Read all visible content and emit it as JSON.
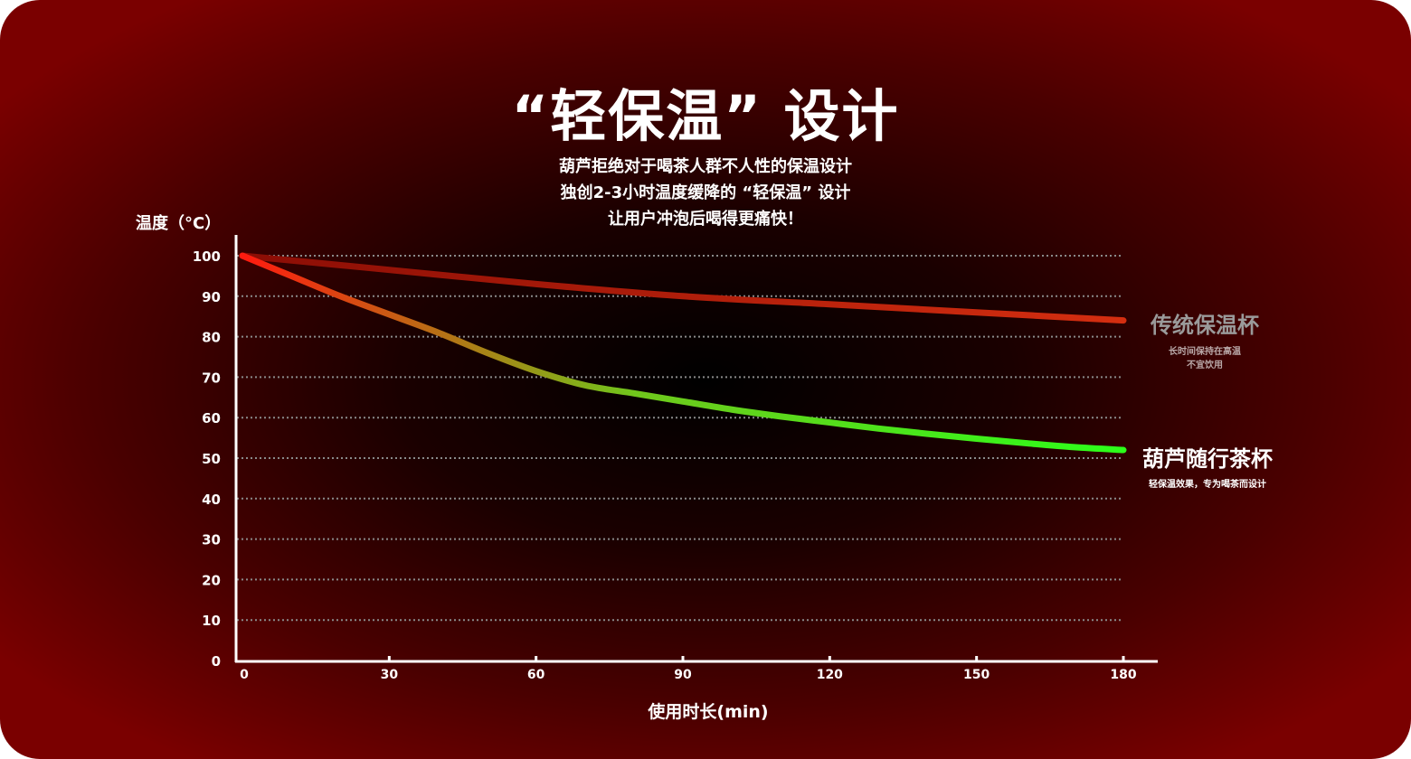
{
  "header": {
    "title": "“轻保温” 设计",
    "subtitle_lines": [
      "葫芦拒绝对于喝茶人群不人性的保温设计",
      "独创2-3小时温度缓降的 “轻保温” 设计",
      "让用户冲泡后喝得更痛快！"
    ]
  },
  "legend": {
    "traditional": {
      "name": "传统保温杯",
      "desc_lines": [
        "长时间保持在高温",
        "不宜饮用"
      ]
    },
    "gourd": {
      "name": "葫芦随行茶杯",
      "desc_lines": [
        "轻保温效果，专为喝茶而设计"
      ]
    }
  },
  "colors": {
    "traditional_start": "#8b0d05",
    "traditional_end": "#d42e10",
    "gourd_start": "#ff1a0f",
    "gourd_mid": "#6fc81c",
    "gourd_end": "#2cff1a",
    "axis": "#ffffff",
    "grid": "#8a8a8a"
  },
  "chart_data": {
    "type": "line",
    "ylabel": "温度（°C）",
    "xlabel": "使用时长(min)",
    "x_ticks": [
      0,
      30,
      60,
      90,
      120,
      150,
      180
    ],
    "y_ticks": [
      0,
      10,
      20,
      30,
      40,
      50,
      60,
      70,
      80,
      90,
      100
    ],
    "xlim": [
      0,
      180
    ],
    "ylim": [
      0,
      100
    ],
    "grid": "horizontal dotted",
    "series": [
      {
        "name": "传统保温杯",
        "x": [
          0,
          30,
          60,
          90,
          120,
          150,
          180
        ],
        "values": [
          100,
          96.5,
          93,
          90,
          88,
          86,
          84
        ]
      },
      {
        "name": "葫芦随行茶杯",
        "x": [
          0,
          10,
          20,
          30,
          40,
          50,
          60,
          70,
          80,
          90,
          100,
          110,
          120,
          130,
          140,
          150,
          160,
          170,
          180
        ],
        "values": [
          100,
          95,
          90,
          85.5,
          81,
          76,
          71.5,
          68,
          66,
          64,
          62,
          60.3,
          58.8,
          57.3,
          56,
          54.8,
          53.7,
          52.7,
          52
        ]
      }
    ]
  }
}
